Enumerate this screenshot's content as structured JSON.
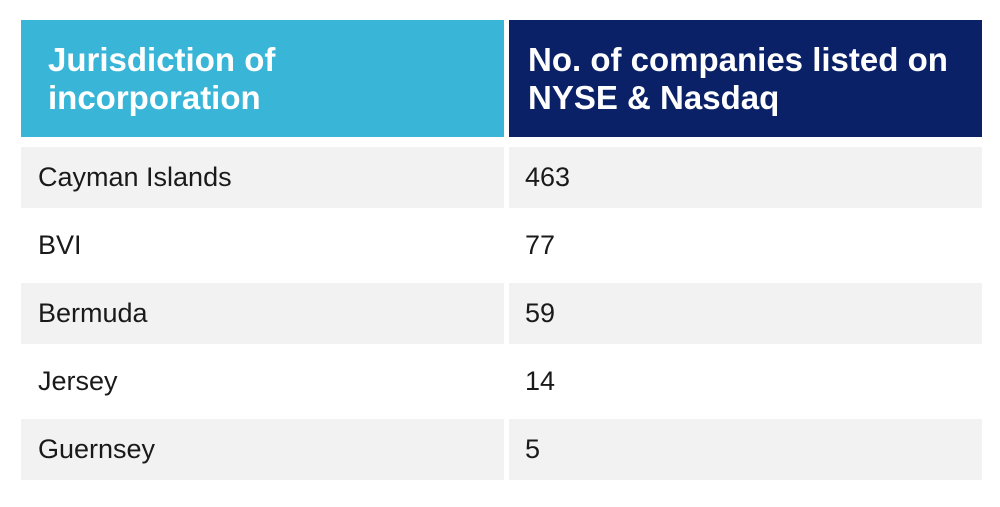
{
  "table": {
    "columns": [
      {
        "key": "jurisdiction",
        "label": "Jurisdiction of incorporation"
      },
      {
        "key": "count",
        "label": "No. of companies listed on NYSE & Nasdaq"
      }
    ],
    "rows": [
      {
        "jurisdiction": "Cayman Islands",
        "count": "463"
      },
      {
        "jurisdiction": "BVI",
        "count": "77"
      },
      {
        "jurisdiction": "Bermuda",
        "count": "59"
      },
      {
        "jurisdiction": "Jersey",
        "count": "14"
      },
      {
        "jurisdiction": "Guernsey",
        "count": "5"
      }
    ],
    "colors": {
      "header_left_bg": "#39b6d7",
      "header_right_bg": "#0a2167",
      "header_text": "#ffffff",
      "row_alt_bg": "#f2f2f2",
      "row_plain_bg": "#ffffff",
      "row_text": "#1a1a1a"
    }
  },
  "chart_data": {
    "type": "table",
    "title": "",
    "columns": [
      "Jurisdiction of incorporation",
      "No. of companies listed on NYSE & Nasdaq"
    ],
    "rows": [
      [
        "Cayman Islands",
        463
      ],
      [
        "BVI",
        77
      ],
      [
        "Bermuda",
        59
      ],
      [
        "Jersey",
        14
      ],
      [
        "Guernsey",
        5
      ]
    ]
  }
}
